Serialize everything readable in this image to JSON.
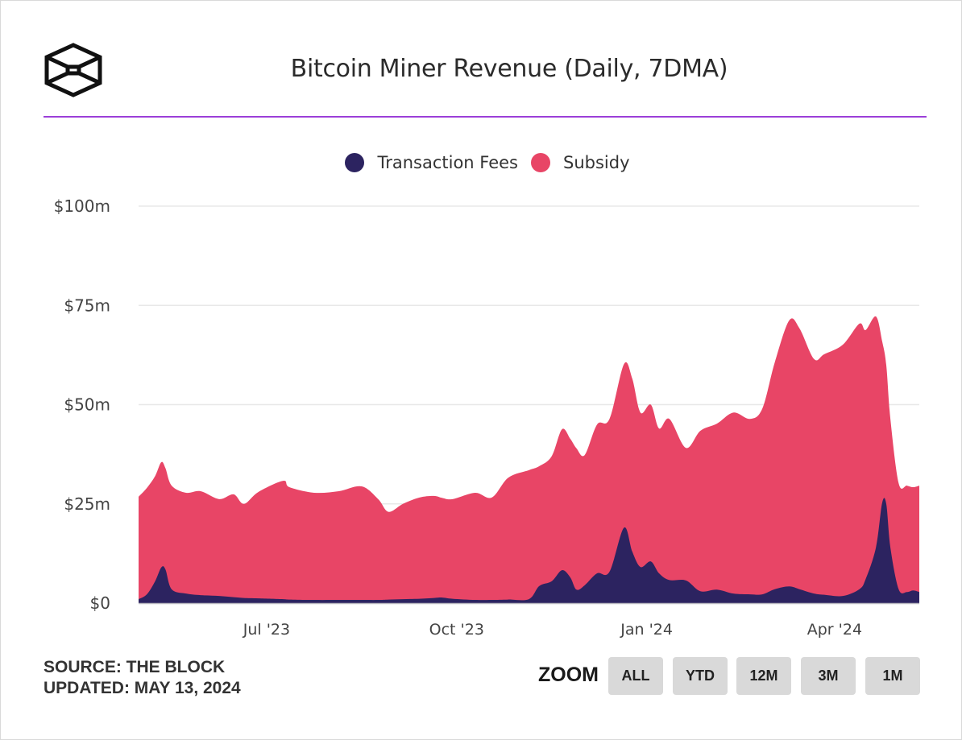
{
  "header": {
    "logo": "the-block-cube-logo",
    "title": "Bitcoin Miner Revenue (Daily, 7DMA)"
  },
  "legend": [
    {
      "label": "Transaction Fees",
      "color": "#2c2360"
    },
    {
      "label": "Subsidy",
      "color": "#e84566"
    }
  ],
  "footer": {
    "source": "SOURCE: THE BLOCK",
    "updated": "UPDATED: MAY 13, 2024",
    "zoom_label": "ZOOM",
    "zoom_buttons": [
      "ALL",
      "YTD",
      "12M",
      "3M",
      "1M"
    ]
  },
  "chart_data": {
    "type": "area",
    "stacked": true,
    "title": "Bitcoin Miner Revenue (Daily, 7DMA)",
    "xlabel": "",
    "ylabel": "",
    "x_type": "date",
    "xlim": [
      "2023-04-30",
      "2024-05-12"
    ],
    "ylim": [
      0,
      100
    ],
    "y_unit": "$m",
    "y_ticks": [
      0,
      25,
      50,
      75,
      100
    ],
    "y_tick_labels": [
      "$0",
      "$25m",
      "$50m",
      "$75m",
      "$100m"
    ],
    "x_ticks": [
      "2023-07-01",
      "2023-10-01",
      "2024-01-01",
      "2024-04-01"
    ],
    "x_tick_labels": [
      "Jul '23",
      "Oct '23",
      "Jan '24",
      "Apr '24"
    ],
    "grid": true,
    "legend_position": "top-center",
    "x": [
      "2023-04-30",
      "2023-05-04",
      "2023-05-08",
      "2023-05-11",
      "2023-05-13",
      "2023-05-16",
      "2023-05-23",
      "2023-05-30",
      "2023-06-08",
      "2023-06-15",
      "2023-06-20",
      "2023-06-27",
      "2023-07-09",
      "2023-07-12",
      "2023-07-24",
      "2023-08-05",
      "2023-08-16",
      "2023-08-24",
      "2023-08-29",
      "2023-09-05",
      "2023-09-13",
      "2023-09-20",
      "2023-09-24",
      "2023-09-29",
      "2023-10-10",
      "2023-10-18",
      "2023-10-26",
      "2023-11-05",
      "2023-11-10",
      "2023-11-16",
      "2023-11-21",
      "2023-11-25",
      "2023-11-28",
      "2023-12-02",
      "2023-12-08",
      "2023-12-14",
      "2023-12-21",
      "2023-12-25",
      "2023-12-29",
      "2024-01-03",
      "2024-01-07",
      "2024-01-12",
      "2024-01-20",
      "2024-01-27",
      "2024-02-04",
      "2024-02-12",
      "2024-02-20",
      "2024-02-26",
      "2024-03-03",
      "2024-03-10",
      "2024-03-15",
      "2024-03-22",
      "2024-03-27",
      "2024-04-05",
      "2024-04-13",
      "2024-04-16",
      "2024-04-21",
      "2024-04-24",
      "2024-04-26",
      "2024-04-28",
      "2024-05-02",
      "2024-05-06",
      "2024-05-09",
      "2024-05-12"
    ],
    "series": [
      {
        "name": "Transaction Fees",
        "color": "#2c2360",
        "values": [
          1.0,
          2.2,
          5.5,
          9.0,
          8.5,
          3.5,
          2.4,
          2.0,
          1.8,
          1.5,
          1.3,
          1.2,
          1.0,
          0.9,
          0.8,
          0.8,
          0.8,
          0.8,
          0.9,
          1.0,
          1.1,
          1.3,
          1.4,
          1.1,
          0.8,
          0.8,
          0.9,
          1.0,
          4.3,
          5.5,
          8.3,
          6.5,
          3.4,
          4.5,
          7.5,
          7.9,
          19.0,
          13.0,
          9.1,
          10.5,
          7.5,
          5.8,
          5.7,
          3.0,
          3.4,
          2.4,
          2.2,
          2.2,
          3.5,
          4.2,
          3.5,
          2.4,
          2.1,
          1.8,
          3.5,
          6.0,
          14.0,
          25.2,
          25.0,
          14.0,
          3.5,
          2.8,
          3.2,
          2.8
        ]
      },
      {
        "name": "Subsidy",
        "color": "#e84566",
        "values": [
          25.8,
          26.8,
          26.5,
          26.5,
          25.5,
          26.1,
          25.4,
          26.2,
          24.4,
          25.9,
          23.7,
          26.8,
          29.8,
          28.3,
          27.0,
          27.4,
          28.6,
          25.4,
          22.1,
          24.0,
          25.5,
          25.7,
          25.1,
          25.1,
          27.0,
          25.8,
          30.7,
          32.5,
          30.2,
          31.5,
          35.5,
          34.9,
          35.6,
          32.8,
          37.5,
          38.5,
          41.2,
          43.6,
          38.9,
          39.5,
          36.5,
          40.6,
          33.4,
          40.4,
          41.8,
          45.6,
          44.2,
          46.8,
          57.1,
          67.0,
          65.7,
          59.1,
          60.6,
          63.3,
          66.9,
          62.8,
          58.2,
          40.8,
          35.0,
          32.4,
          26.7,
          26.8,
          26.0,
          26.8
        ]
      }
    ]
  }
}
